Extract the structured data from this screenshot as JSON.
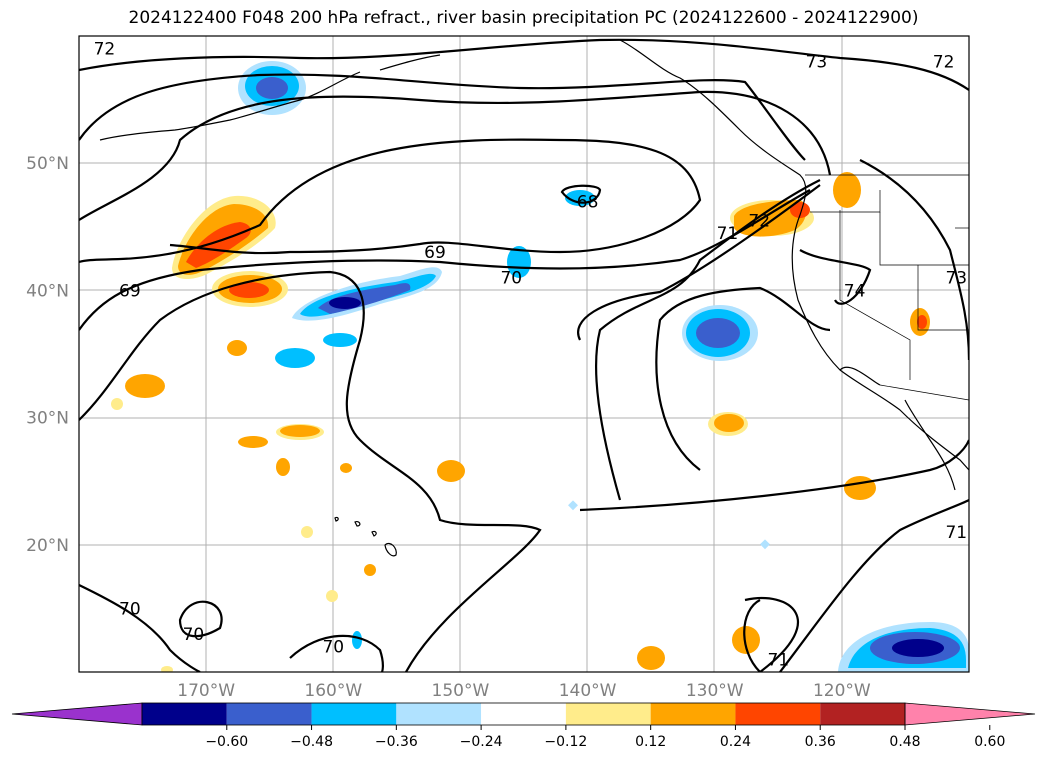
{
  "title": "2024122400 F048 200 hPa refract., river basin precipitation PC (2024122600 - 2024122900)",
  "map": {
    "lon_range": [
      -180,
      -110
    ],
    "lat_range": [
      10,
      60
    ],
    "lat_labels": [
      {
        "lat": 50,
        "text": "50°N"
      },
      {
        "lat": 40,
        "text": "40°N"
      },
      {
        "lat": 30,
        "text": "30°N"
      },
      {
        "lat": 20,
        "text": "20°N"
      }
    ],
    "lon_labels": [
      {
        "lon": -170,
        "text": "170°W"
      },
      {
        "lon": -160,
        "text": "160°W"
      },
      {
        "lon": -150,
        "text": "150°W"
      },
      {
        "lon": -140,
        "text": "140°W"
      },
      {
        "lon": -130,
        "text": "130°W"
      },
      {
        "lon": -120,
        "text": "120°W"
      }
    ],
    "contour_labels": [
      {
        "text": "72",
        "lon": -178,
        "lat": 59
      },
      {
        "text": "73",
        "lon": -122,
        "lat": 58
      },
      {
        "text": "72",
        "lon": -112,
        "lat": 58
      },
      {
        "text": "68",
        "lon": -140,
        "lat": 47
      },
      {
        "text": "69",
        "lon": -152,
        "lat": 43
      },
      {
        "text": "70",
        "lon": -146,
        "lat": 41
      },
      {
        "text": "71",
        "lon": -129,
        "lat": 44.5
      },
      {
        "text": "72",
        "lon": -126.5,
        "lat": 45.5
      },
      {
        "text": "69",
        "lon": -176,
        "lat": 40
      },
      {
        "text": "74",
        "lon": -119,
        "lat": 40
      },
      {
        "text": "73",
        "lon": -111,
        "lat": 41
      },
      {
        "text": "71",
        "lon": -111,
        "lat": 21
      },
      {
        "text": "70",
        "lon": -176,
        "lat": 15
      },
      {
        "text": "70",
        "lon": -171,
        "lat": 13
      },
      {
        "text": "70",
        "lon": -160,
        "lat": 12
      },
      {
        "text": "71",
        "lon": -125,
        "lat": 11
      }
    ]
  },
  "colorbar": {
    "colors": [
      "#9a32cd",
      "#00008b",
      "#3a5fcd",
      "#00bfff",
      "#b0e2ff",
      "#ffffff",
      "#ffec8b",
      "#ffa500",
      "#ff4500",
      "#b22222",
      "#ff82ab"
    ],
    "ticks": [
      "−0.60",
      "−0.48",
      "−0.36",
      "−0.24",
      "−0.12",
      "0.12",
      "0.24",
      "0.36",
      "0.48",
      "0.60"
    ]
  }
}
